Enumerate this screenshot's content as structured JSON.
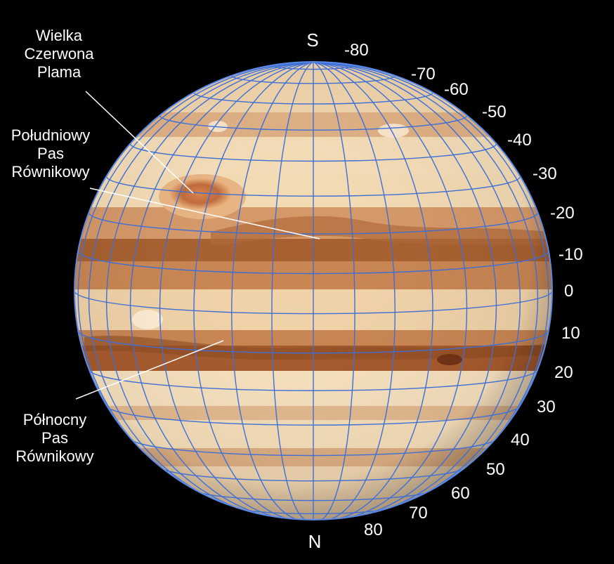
{
  "poles": {
    "south": "S",
    "north": "N"
  },
  "annotations": {
    "great_red_spot": [
      "Wielka",
      "Czerwona",
      "Plama"
    ],
    "south_equatorial_belt": [
      "Południowy",
      "Pas",
      "Równikowy"
    ],
    "north_equatorial_belt": [
      "Północny",
      "Pas",
      "Równikowy"
    ]
  },
  "latitude_labels": [
    "-80",
    "-70",
    "-60",
    "-50",
    "-40",
    "-30",
    "-20",
    "-10",
    "0",
    "10",
    "20",
    "30",
    "40",
    "50",
    "60",
    "70",
    "80"
  ],
  "colors": {
    "background": "#000000",
    "grid": "#3d6fd6",
    "planet_light": "#f5dcb3",
    "planet_band": "#c98a55",
    "planet_dark_band": "#9a5226",
    "great_red_spot": "#c06a3a",
    "label": "#ffffff"
  }
}
